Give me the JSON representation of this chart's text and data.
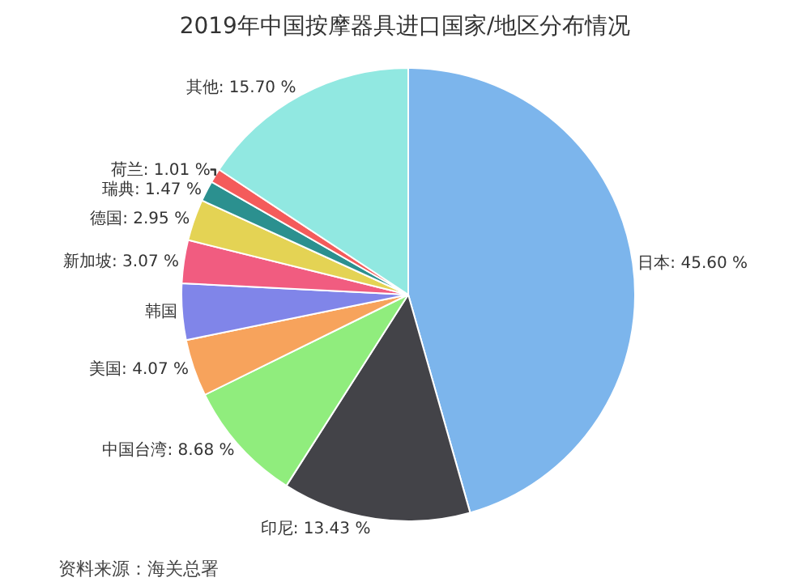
{
  "chart_data": {
    "type": "pie",
    "title": "2019年中国按摩器具进口国家/地区分布情况",
    "categories": [
      "日本",
      "印尼",
      "中国台湾",
      "美国",
      "韩国",
      "新加坡",
      "德国",
      "瑞典",
      "荷兰",
      "其他"
    ],
    "values": [
      45.6,
      13.43,
      8.68,
      4.07,
      4.02,
      3.07,
      2.95,
      1.47,
      1.01,
      15.7
    ],
    "value_labels": [
      "45.60 %",
      "13.43 %",
      "8.68 %",
      "4.07 %",
      null,
      "3.07 %",
      "2.95 %",
      "1.47 %",
      "1.01 %",
      "15.70 %"
    ],
    "colors": [
      "#7cb5ec",
      "#434348",
      "#90ed7d",
      "#f7a35c",
      "#8085e9",
      "#f15c80",
      "#e4d354",
      "#2b908f",
      "#f45b5b",
      "#91e8e1"
    ],
    "annotations": [
      "资料来源：海关总署"
    ],
    "legend": false
  }
}
